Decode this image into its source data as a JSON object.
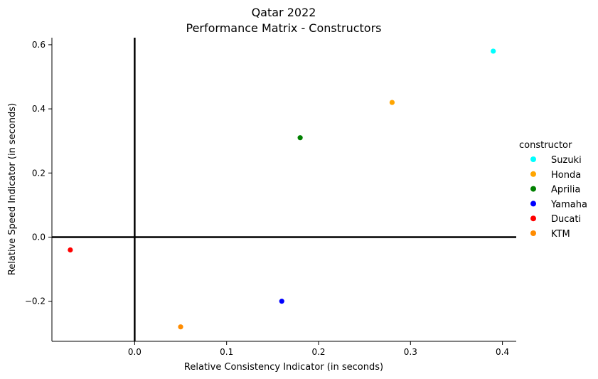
{
  "chart_data": {
    "type": "scatter",
    "title_line1": "Qatar 2022",
    "title_line2": "Performance Matrix - Constructors",
    "xlabel": "Relative Consistency Indicator (in seconds)",
    "ylabel": "Relative Speed Indicator (in seconds)",
    "xlim": [
      -0.09,
      0.415
    ],
    "ylim": [
      -0.325,
      0.622
    ],
    "xticks": [
      0.0,
      0.1,
      0.2,
      0.3,
      0.4
    ],
    "xtick_labels": [
      "0.0",
      "0.1",
      "0.2",
      "0.3",
      "0.4"
    ],
    "yticks": [
      -0.2,
      0.0,
      0.2,
      0.4,
      0.6
    ],
    "ytick_labels": [
      "−0.2",
      "0.0",
      "0.2",
      "0.4",
      "0.6"
    ],
    "grid": false,
    "reference_lines": {
      "x": 0,
      "y": 0
    },
    "legend_title": "constructor",
    "legend_position": "right",
    "series": [
      {
        "name": "Suzuki",
        "color": "#00ffff",
        "x": 0.39,
        "y": 0.58
      },
      {
        "name": "Honda",
        "color": "#ffa500",
        "x": 0.28,
        "y": 0.42
      },
      {
        "name": "Aprilia",
        "color": "#008000",
        "x": 0.18,
        "y": 0.31
      },
      {
        "name": "Yamaha",
        "color": "#0000ff",
        "x": 0.16,
        "y": -0.2
      },
      {
        "name": "Ducati",
        "color": "#ff0000",
        "x": -0.07,
        "y": -0.04
      },
      {
        "name": "KTM",
        "color": "#ff8c00",
        "x": 0.05,
        "y": -0.28
      }
    ]
  }
}
